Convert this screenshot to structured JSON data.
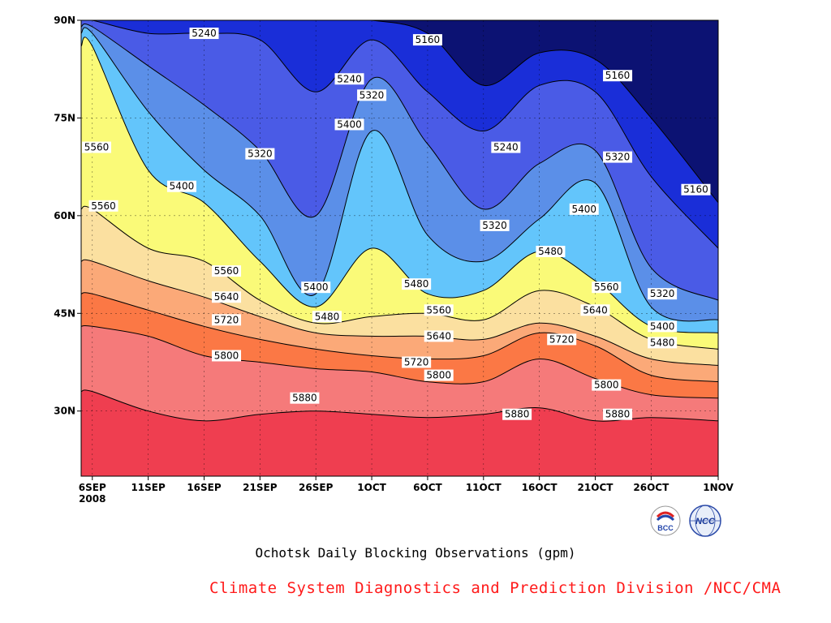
{
  "chart_data": {
    "type": "heatmap",
    "subtype": "filled-contour",
    "title": "Ochotsk Daily Blocking Observations (gpm)",
    "x_ticks": [
      "6SEP\n2008",
      "11SEP",
      "16SEP",
      "21SEP",
      "26SEP",
      "1OCT",
      "6OCT",
      "11OCT",
      "16OCT",
      "21OCT",
      "26OCT",
      "1NOV"
    ],
    "x_tick_labels": [
      {
        "line1": "6SEP",
        "line2": "2008"
      },
      {
        "line1": "11SEP",
        "line2": ""
      },
      {
        "line1": "16SEP",
        "line2": ""
      },
      {
        "line1": "21SEP",
        "line2": ""
      },
      {
        "line1": "26SEP",
        "line2": ""
      },
      {
        "line1": "1OCT",
        "line2": ""
      },
      {
        "line1": "6OCT",
        "line2": ""
      },
      {
        "line1": "11OCT",
        "line2": ""
      },
      {
        "line1": "16OCT",
        "line2": ""
      },
      {
        "line1": "21OCT",
        "line2": ""
      },
      {
        "line1": "26OCT",
        "line2": ""
      },
      {
        "line1": "1NOV",
        "line2": ""
      }
    ],
    "y_ticks": [
      "30N",
      "45N",
      "60N",
      "75N",
      "90N"
    ],
    "y_tick_values": [
      30,
      45,
      60,
      75,
      90
    ],
    "ylim": [
      20,
      90
    ],
    "x_dates": [
      "2008-09-06",
      "2008-09-11",
      "2008-09-16",
      "2008-09-21",
      "2008-09-26",
      "2008-10-01",
      "2008-10-06",
      "2008-10-11",
      "2008-10-16",
      "2008-10-21",
      "2008-10-26",
      "2008-11-01"
    ],
    "xlim": [
      "2008-09-05",
      "2008-11-01"
    ],
    "grid": true,
    "contour_levels": [
      5160,
      5240,
      5320,
      5400,
      5480,
      5560,
      5640,
      5720,
      5800,
      5880
    ],
    "band_colors": [
      "#0c1273",
      "#1a2ed8",
      "#4a5be6",
      "#5b8fe8",
      "#63c5fb",
      "#fafa78",
      "#fbe0a0",
      "#fba978",
      "#fb7845",
      "#f57a7a",
      "#ef3e50"
    ],
    "isolines": [
      {
        "value": 5880,
        "lat": [
          33,
          30,
          28.5,
          29.5,
          30,
          29.5,
          29,
          29.5,
          30.5,
          28.5,
          29,
          28.5
        ]
      },
      {
        "value": 5800,
        "lat": [
          43,
          41.5,
          38.5,
          37.5,
          36.5,
          36,
          34.5,
          34.5,
          38,
          35,
          32.5,
          32
        ]
      },
      {
        "value": 5720,
        "lat": [
          48,
          45.5,
          43,
          41,
          39.5,
          38.5,
          38,
          38.5,
          42,
          40,
          35.5,
          34.5
        ]
      },
      {
        "value": 5640,
        "lat": [
          53,
          50,
          47.5,
          44.5,
          42,
          41.5,
          41.5,
          41,
          43.5,
          41.5,
          38,
          37
        ]
      },
      {
        "value": 5560,
        "lat": [
          61,
          55,
          53,
          47,
          43.5,
          44.5,
          45,
          44,
          48.5,
          46,
          41,
          39.5
        ]
      },
      {
        "value": 5480,
        "lat": [
          86,
          67,
          62,
          53,
          46,
          55,
          48,
          48.5,
          54.5,
          50,
          43,
          42
        ]
      },
      {
        "value": 5400,
        "lat": [
          88,
          76,
          67,
          60,
          48,
          73,
          57,
          53,
          59.5,
          65,
          46,
          44
        ]
      },
      {
        "value": 5320,
        "lat": [
          89,
          83,
          77,
          70,
          60,
          81,
          71,
          61,
          68,
          70,
          52,
          47
        ]
      },
      {
        "value": 5240,
        "lat": [
          90,
          88,
          88,
          87,
          79,
          87,
          79,
          73,
          80,
          79,
          66,
          55
        ]
      },
      {
        "value": 5160,
        "lat": [
          90,
          90,
          90,
          90,
          90,
          90,
          88,
          80,
          85,
          84,
          75,
          62
        ]
      }
    ],
    "contour_labels": [
      {
        "text": "5240",
        "x": "2008-09-16",
        "lat": 88
      },
      {
        "text": "5160",
        "x": "2008-10-06",
        "lat": 87
      },
      {
        "text": "5240",
        "x": "2008-09-29",
        "lat": 81
      },
      {
        "text": "5320",
        "x": "2008-10-01",
        "lat": 78.5
      },
      {
        "text": "5160",
        "x": "2008-10-23",
        "lat": 81.5
      },
      {
        "text": "5560",
        "x": "2008-09-05",
        "lat": 70.5
      },
      {
        "text": "5400",
        "x": "2008-09-29",
        "lat": 74
      },
      {
        "text": "5320",
        "x": "2008-09-21",
        "lat": 69.5
      },
      {
        "text": "5240",
        "x": "2008-10-13",
        "lat": 70.5
      },
      {
        "text": "5320",
        "x": "2008-10-23",
        "lat": 69
      },
      {
        "text": "5400",
        "x": "2008-09-14",
        "lat": 64.5
      },
      {
        "text": "5560",
        "x": "2008-09-07",
        "lat": 61.5
      },
      {
        "text": "5160",
        "x": "2008-10-30",
        "lat": 64
      },
      {
        "text": "5400",
        "x": "2008-10-20",
        "lat": 61
      },
      {
        "text": "5320",
        "x": "2008-10-12",
        "lat": 58.5
      },
      {
        "text": "5480",
        "x": "2008-10-17",
        "lat": 54.5
      },
      {
        "text": "5560",
        "x": "2008-09-18",
        "lat": 51.5
      },
      {
        "text": "5400",
        "x": "2008-09-26",
        "lat": 49
      },
      {
        "text": "5480",
        "x": "2008-10-05",
        "lat": 49.5
      },
      {
        "text": "5560",
        "x": "2008-10-22",
        "lat": 49
      },
      {
        "text": "5640",
        "x": "2008-09-18",
        "lat": 47.5
      },
      {
        "text": "5320",
        "x": "2008-10-27",
        "lat": 48
      },
      {
        "text": "5480",
        "x": "2008-09-27",
        "lat": 44.5
      },
      {
        "text": "5560",
        "x": "2008-10-07",
        "lat": 45.5
      },
      {
        "text": "5640",
        "x": "2008-10-21",
        "lat": 45.5
      },
      {
        "text": "5720",
        "x": "2008-09-18",
        "lat": 44
      },
      {
        "text": "5400",
        "x": "2008-10-27",
        "lat": 43
      },
      {
        "text": "5640",
        "x": "2008-10-07",
        "lat": 41.5
      },
      {
        "text": "5720",
        "x": "2008-10-18",
        "lat": 41
      },
      {
        "text": "5480",
        "x": "2008-10-27",
        "lat": 40.5
      },
      {
        "text": "5800",
        "x": "2008-09-18",
        "lat": 38.5
      },
      {
        "text": "5720",
        "x": "2008-10-05",
        "lat": 37.5
      },
      {
        "text": "5800",
        "x": "2008-10-07",
        "lat": 35.5
      },
      {
        "text": "5800",
        "x": "2008-10-22",
        "lat": 34
      },
      {
        "text": "5880",
        "x": "2008-09-25",
        "lat": 32
      },
      {
        "text": "5880",
        "x": "2008-10-14",
        "lat": 29.5
      },
      {
        "text": "5880",
        "x": "2008-10-23",
        "lat": 29.5
      }
    ]
  },
  "footer": {
    "title": "Ochotsk Daily Blocking Observations (gpm)",
    "credit": "Climate System Diagnostics and Prediction Division /NCC/CMA"
  },
  "logos": {
    "left_text": "BCC",
    "right_text": "NCC"
  }
}
